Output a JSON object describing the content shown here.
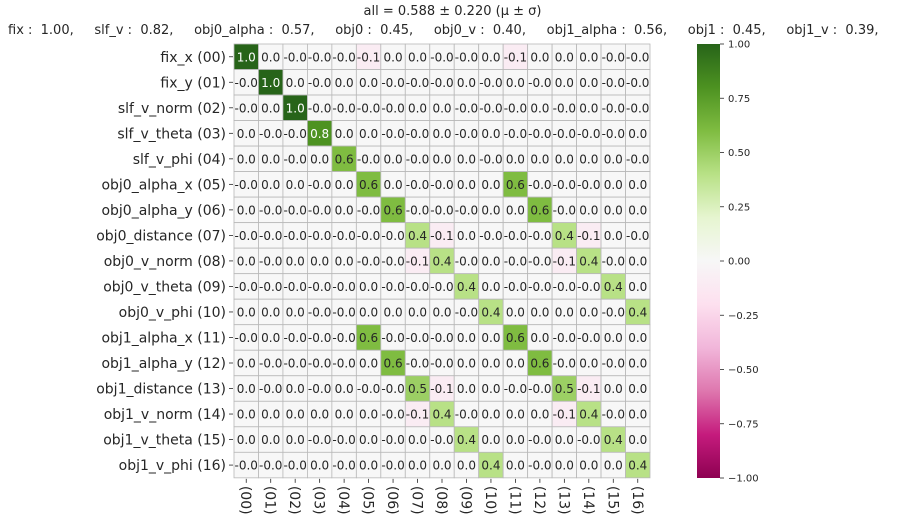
{
  "chart_data": {
    "type": "heatmap",
    "title": "all  =  0.588 ± 0.220  (μ ± σ)",
    "subtitle": "fix :  1.00,     slf_v :  0.82,     obj0_alpha :  0.57,     obj0 :  0.45,     obj0_v :  0.40,     obj1_alpha :  0.56,     obj1 :  0.45,     obj1_v :  0.39,",
    "row_labels": [
      "fix_x (00)",
      "fix_y (01)",
      "slf_v_norm (02)",
      "slf_v_theta (03)",
      "slf_v_phi (04)",
      "obj0_alpha_x (05)",
      "obj0_alpha_y (06)",
      "obj0_distance (07)",
      "obj0_v_norm (08)",
      "obj0_v_theta (09)",
      "obj0_v_phi (10)",
      "obj1_alpha_x (11)",
      "obj1_alpha_y (12)",
      "obj1_distance (13)",
      "obj1_v_norm (14)",
      "obj1_v_theta (15)",
      "obj1_v_phi (16)"
    ],
    "col_labels": [
      "(00)",
      "(01)",
      "(02)",
      "(03)",
      "(04)",
      "(05)",
      "(06)",
      "(07)",
      "(08)",
      "(09)",
      "(10)",
      "(11)",
      "(12)",
      "(13)",
      "(14)",
      "(15)",
      "(16)"
    ],
    "vmin": -1.0,
    "vmax": 1.0,
    "colormap": "PiYG",
    "colorbar_ticks": [
      "1.00",
      "0.75",
      "0.50",
      "0.25",
      "0.00",
      "−0.25",
      "−0.50",
      "−0.75",
      "−1.00"
    ],
    "values": [
      [
        1.0,
        0.0,
        -0.0,
        -0.0,
        -0.0,
        -0.1,
        0.0,
        0.0,
        -0.0,
        -0.0,
        0.0,
        -0.1,
        0.0,
        0.0,
        0.0,
        -0.0,
        -0.0
      ],
      [
        -0.0,
        1.0,
        0.0,
        -0.0,
        0.0,
        0.0,
        -0.0,
        -0.0,
        -0.0,
        0.0,
        -0.0,
        0.0,
        -0.0,
        0.0,
        0.0,
        -0.0,
        -0.0
      ],
      [
        -0.0,
        0.0,
        1.0,
        -0.0,
        -0.0,
        -0.0,
        -0.0,
        0.0,
        0.0,
        -0.0,
        -0.0,
        -0.0,
        0.0,
        -0.0,
        0.0,
        -0.0,
        -0.0
      ],
      [
        0.0,
        -0.0,
        -0.0,
        0.8,
        0.0,
        0.0,
        -0.0,
        -0.0,
        0.0,
        -0.0,
        0.0,
        -0.0,
        -0.0,
        -0.0,
        -0.0,
        -0.0,
        0.0
      ],
      [
        0.0,
        0.0,
        -0.0,
        0.0,
        0.6,
        -0.0,
        0.0,
        -0.0,
        0.0,
        0.0,
        -0.0,
        0.0,
        0.0,
        0.0,
        0.0,
        0.0,
        -0.0
      ],
      [
        -0.0,
        0.0,
        0.0,
        -0.0,
        0.0,
        0.6,
        0.0,
        -0.0,
        -0.0,
        0.0,
        0.0,
        0.6,
        -0.0,
        -0.0,
        -0.0,
        0.0,
        0.0
      ],
      [
        0.0,
        -0.0,
        -0.0,
        -0.0,
        0.0,
        -0.0,
        0.6,
        -0.0,
        -0.0,
        -0.0,
        0.0,
        0.0,
        0.6,
        -0.0,
        0.0,
        0.0,
        0.0
      ],
      [
        -0.0,
        -0.0,
        -0.0,
        -0.0,
        -0.0,
        -0.0,
        -0.0,
        0.4,
        -0.1,
        0.0,
        -0.0,
        -0.0,
        -0.0,
        0.4,
        -0.1,
        0.0,
        -0.0
      ],
      [
        0.0,
        -0.0,
        0.0,
        0.0,
        0.0,
        -0.0,
        -0.0,
        -0.1,
        0.4,
        -0.0,
        0.0,
        -0.0,
        -0.0,
        -0.1,
        0.4,
        -0.0,
        0.0
      ],
      [
        -0.0,
        -0.0,
        -0.0,
        -0.0,
        -0.0,
        0.0,
        -0.0,
        -0.0,
        -0.0,
        0.4,
        0.0,
        -0.0,
        -0.0,
        -0.0,
        -0.0,
        0.4,
        0.0
      ],
      [
        0.0,
        0.0,
        0.0,
        -0.0,
        -0.0,
        0.0,
        0.0,
        0.0,
        0.0,
        -0.0,
        0.4,
        0.0,
        0.0,
        0.0,
        0.0,
        -0.0,
        0.4
      ],
      [
        -0.0,
        0.0,
        -0.0,
        -0.0,
        -0.0,
        0.6,
        -0.0,
        -0.0,
        -0.0,
        0.0,
        0.0,
        0.6,
        0.0,
        -0.0,
        -0.0,
        0.0,
        0.0
      ],
      [
        0.0,
        -0.0,
        -0.0,
        -0.0,
        -0.0,
        0.0,
        0.6,
        -0.0,
        -0.0,
        0.0,
        0.0,
        0.0,
        0.6,
        -0.0,
        0.0,
        -0.0,
        0.0
      ],
      [
        0.0,
        -0.0,
        0.0,
        -0.0,
        0.0,
        -0.0,
        -0.0,
        0.5,
        -0.1,
        0.0,
        0.0,
        -0.0,
        -0.0,
        0.5,
        -0.1,
        0.0,
        0.0
      ],
      [
        0.0,
        0.0,
        0.0,
        0.0,
        0.0,
        0.0,
        -0.0,
        -0.1,
        0.4,
        -0.0,
        0.0,
        0.0,
        0.0,
        -0.1,
        0.4,
        -0.0,
        0.0
      ],
      [
        0.0,
        0.0,
        0.0,
        -0.0,
        -0.0,
        0.0,
        -0.0,
        0.0,
        -0.0,
        0.4,
        0.0,
        0.0,
        -0.0,
        0.0,
        -0.0,
        0.4,
        0.0
      ],
      [
        -0.0,
        -0.0,
        -0.0,
        0.0,
        -0.0,
        0.0,
        -0.0,
        0.0,
        0.0,
        0.0,
        0.4,
        0.0,
        -0.0,
        0.0,
        0.0,
        0.0,
        0.4
      ]
    ]
  }
}
